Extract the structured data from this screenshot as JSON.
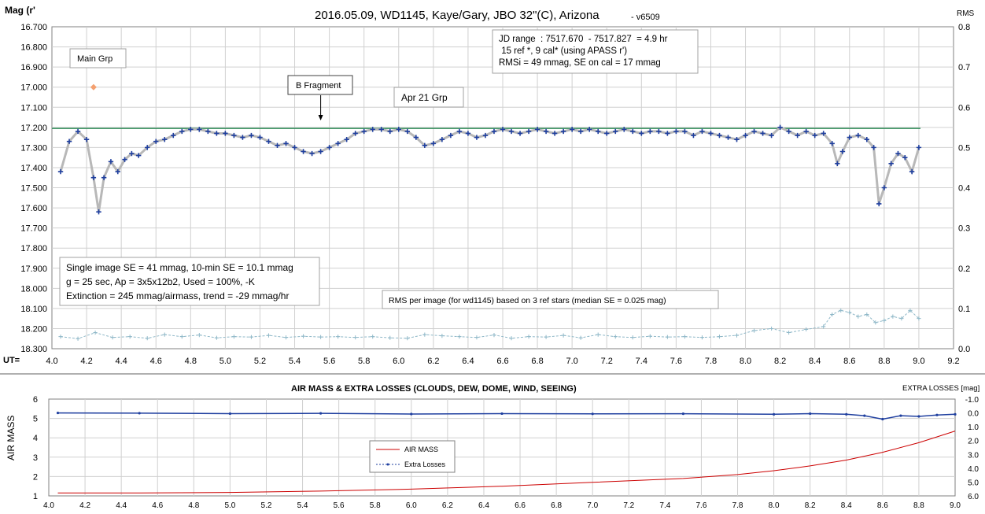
{
  "chart_data": [
    {
      "type": "scatter",
      "title": "2016.05.09,  WD1145, Kaye/Gary, JBO 32\"(C), Arizona",
      "version": "- v6509",
      "ylabel_left": "Mag (r'",
      "ylabel_right": "RMS",
      "xlabel": "UT=",
      "xlim": [
        4.0,
        9.2
      ],
      "ylim_left": [
        16.7,
        18.3
      ],
      "ylim_right": [
        0.0,
        0.8
      ],
      "x_ticks": [
        "4.0",
        "4.2",
        "4.4",
        "4.6",
        "4.8",
        "5.0",
        "5.2",
        "5.4",
        "5.6",
        "5.8",
        "6.0",
        "6.2",
        "6.4",
        "6.6",
        "6.8",
        "7.0",
        "7.2",
        "7.4",
        "7.6",
        "7.8",
        "8.0",
        "8.2",
        "8.4",
        "8.6",
        "8.8",
        "9.0",
        "9.2"
      ],
      "y_ticks_left": [
        "16.700",
        "16.800",
        "16.900",
        "17.000",
        "17.100",
        "17.200",
        "17.300",
        "17.400",
        "17.500",
        "17.600",
        "17.700",
        "17.800",
        "17.900",
        "18.000",
        "18.100",
        "18.200",
        "18.300"
      ],
      "y_ticks_right": [
        "0.8",
        "0.7",
        "0.6",
        "0.5",
        "0.4",
        "0.3",
        "0.2",
        "0.1",
        "0.0"
      ],
      "grid": true,
      "reference_level": 17.205,
      "series": [
        {
          "role": "magnitudes",
          "color": "#1f3f9f",
          "x": [
            4.05,
            4.1,
            4.15,
            4.2,
            4.24,
            4.27,
            4.3,
            4.34,
            4.38,
            4.42,
            4.46,
            4.5,
            4.55,
            4.6,
            4.65,
            4.7,
            4.75,
            4.8,
            4.85,
            4.9,
            4.95,
            5.0,
            5.05,
            5.1,
            5.15,
            5.2,
            5.25,
            5.3,
            5.35,
            5.4,
            5.45,
            5.5,
            5.55,
            5.6,
            5.65,
            5.7,
            5.75,
            5.8,
            5.85,
            5.9,
            5.95,
            6.0,
            6.05,
            6.1,
            6.15,
            6.2,
            6.25,
            6.3,
            6.35,
            6.4,
            6.45,
            6.5,
            6.55,
            6.6,
            6.65,
            6.7,
            6.75,
            6.8,
            6.85,
            6.9,
            6.95,
            7.0,
            7.05,
            7.1,
            7.15,
            7.2,
            7.25,
            7.3,
            7.35,
            7.4,
            7.45,
            7.5,
            7.55,
            7.6,
            7.65,
            7.7,
            7.75,
            7.8,
            7.85,
            7.9,
            7.95,
            8.0,
            8.05,
            8.1,
            8.15,
            8.2,
            8.25,
            8.3,
            8.35,
            8.4,
            8.45,
            8.5,
            8.53,
            8.56,
            8.6,
            8.65,
            8.7,
            8.74,
            8.77,
            8.8,
            8.84,
            8.88,
            8.92,
            8.96,
            9.0
          ],
          "y": [
            17.42,
            17.27,
            17.22,
            17.26,
            17.45,
            17.62,
            17.45,
            17.37,
            17.42,
            17.36,
            17.33,
            17.34,
            17.3,
            17.27,
            17.26,
            17.24,
            17.22,
            17.21,
            17.21,
            17.22,
            17.23,
            17.23,
            17.24,
            17.25,
            17.24,
            17.25,
            17.27,
            17.29,
            17.28,
            17.3,
            17.32,
            17.33,
            17.32,
            17.3,
            17.28,
            17.26,
            17.23,
            17.22,
            17.21,
            17.21,
            17.22,
            17.21,
            17.22,
            17.25,
            17.29,
            17.28,
            17.26,
            17.24,
            17.22,
            17.23,
            17.25,
            17.24,
            17.22,
            17.21,
            17.22,
            17.23,
            17.22,
            17.21,
            17.22,
            17.23,
            17.22,
            17.21,
            17.22,
            17.21,
            17.22,
            17.23,
            17.22,
            17.21,
            17.22,
            17.23,
            17.22,
            17.22,
            17.23,
            17.22,
            17.22,
            17.24,
            17.22,
            17.23,
            17.24,
            17.25,
            17.26,
            17.24,
            17.22,
            17.23,
            17.24,
            17.2,
            17.22,
            17.24,
            17.22,
            17.24,
            17.23,
            17.28,
            17.38,
            17.32,
            17.25,
            17.24,
            17.26,
            17.3,
            17.58,
            17.5,
            17.38,
            17.33,
            17.35,
            17.42,
            17.3
          ]
        },
        {
          "role": "rms_per_image",
          "axis": "right",
          "color": "#8fb8c8",
          "x": [
            4.05,
            4.15,
            4.25,
            4.35,
            4.45,
            4.55,
            4.65,
            4.75,
            4.85,
            4.95,
            5.05,
            5.15,
            5.25,
            5.35,
            5.45,
            5.55,
            5.65,
            5.75,
            5.85,
            5.95,
            6.05,
            6.15,
            6.25,
            6.35,
            6.45,
            6.55,
            6.65,
            6.75,
            6.85,
            6.95,
            7.05,
            7.15,
            7.25,
            7.35,
            7.45,
            7.55,
            7.65,
            7.75,
            7.85,
            7.95,
            8.05,
            8.15,
            8.25,
            8.35,
            8.45,
            8.5,
            8.55,
            8.6,
            8.65,
            8.7,
            8.75,
            8.8,
            8.85,
            8.9,
            8.95,
            9.0
          ],
          "y": [
            0.03,
            0.025,
            0.04,
            0.028,
            0.03,
            0.026,
            0.035,
            0.03,
            0.034,
            0.027,
            0.03,
            0.029,
            0.033,
            0.028,
            0.031,
            0.029,
            0.03,
            0.028,
            0.03,
            0.027,
            0.026,
            0.035,
            0.032,
            0.03,
            0.028,
            0.034,
            0.026,
            0.03,
            0.029,
            0.033,
            0.027,
            0.035,
            0.03,
            0.028,
            0.031,
            0.029,
            0.03,
            0.028,
            0.03,
            0.033,
            0.045,
            0.05,
            0.04,
            0.048,
            0.055,
            0.085,
            0.095,
            0.09,
            0.08,
            0.085,
            0.065,
            0.07,
            0.08,
            0.075,
            0.095,
            0.075
          ]
        }
      ],
      "annotations": {
        "info_box": [
          "JD range  : 7517.670  - 7517.827  = 4.9 hr",
          " 15 ref *, 9 cal* (using APASS r')",
          "RMSi = 49 mmag, SE on cal = 17 mmag"
        ],
        "stats_box": [
          "Single image SE = 41 mmag, 10-min SE = 10.1 mmag",
          "g = 25 sec, Ap = 3x5x12b2, Used = 100%, -K",
          "Extinction = 245 mmag/airmass, trend = -29 mmag/hr"
        ],
        "main_grp": "Main Grp",
        "main_grp_marker": {
          "x": 4.24,
          "y": 17.0,
          "color": "#f4a070"
        },
        "b_fragment": "B Fragment",
        "b_fragment_x": 5.55,
        "apr21_grp": "Apr 21 Grp",
        "rms_note": "RMS per image (for wd1145) based on 3 ref stars (median SE = 0.025 mag)"
      }
    },
    {
      "type": "line",
      "title": "AIR MASS & EXTRA LOSSES (CLOUDS, DEW, DOME, WIND, SEEING)",
      "ylabel_left": "AIR MASS",
      "ylabel_right": "EXTRA LOSSES [mag]",
      "xlim": [
        4.0,
        9.0
      ],
      "ylim_left": [
        1,
        6
      ],
      "ylim_right": [
        6.0,
        -1.0
      ],
      "x_ticks": [
        "4.0",
        "4.2",
        "4.4",
        "4.6",
        "4.8",
        "5.0",
        "5.2",
        "5.4",
        "5.6",
        "5.8",
        "6.0",
        "6.2",
        "6.4",
        "6.6",
        "6.8",
        "7.0",
        "7.2",
        "7.4",
        "7.6",
        "7.8",
        "8.0",
        "8.2",
        "8.4",
        "8.6",
        "8.8",
        "9.0"
      ],
      "y_ticks_left": [
        "6",
        "5",
        "4",
        "3",
        "2",
        "1"
      ],
      "y_ticks_right": [
        "-1.0",
        "0.0",
        "1.0",
        "2.0",
        "3.0",
        "4.0",
        "5.0",
        "6.0"
      ],
      "grid": true,
      "series": [
        {
          "name": "AIR MASS",
          "color": "#cc0000",
          "x": [
            4.05,
            4.5,
            5.0,
            5.5,
            6.0,
            6.5,
            7.0,
            7.5,
            7.8,
            8.0,
            8.2,
            8.4,
            8.6,
            8.8,
            8.9,
            9.0
          ],
          "y": [
            1.15,
            1.15,
            1.18,
            1.25,
            1.35,
            1.5,
            1.7,
            1.9,
            2.1,
            2.3,
            2.55,
            2.85,
            3.25,
            3.75,
            4.05,
            4.35
          ]
        },
        {
          "name": "Extra Losses",
          "color": "#1f3f9f",
          "x": [
            4.05,
            4.5,
            5.0,
            5.5,
            6.0,
            6.5,
            7.0,
            7.5,
            8.0,
            8.2,
            8.4,
            8.5,
            8.6,
            8.7,
            8.8,
            8.9,
            9.0
          ],
          "y": [
            0.0,
            0.02,
            0.05,
            0.03,
            0.08,
            0.05,
            0.07,
            0.06,
            0.1,
            0.05,
            0.1,
            0.2,
            0.45,
            0.2,
            0.25,
            0.15,
            0.1
          ]
        }
      ],
      "legend": "center-left"
    }
  ]
}
